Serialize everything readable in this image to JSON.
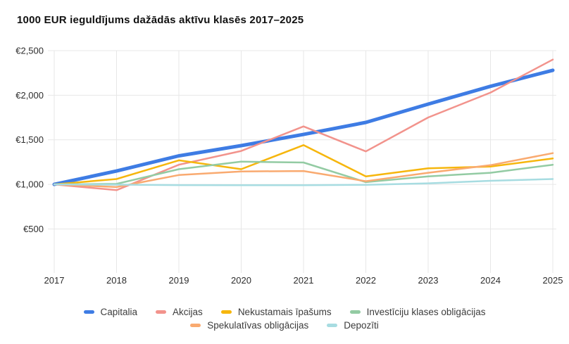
{
  "title": "1000 EUR ieguldījums dažādās aktīvu klasēs 2017–2025",
  "chart_data": {
    "type": "line",
    "title": "1000 EUR ieguldījums dažādās aktīvu klasēs 2017–2025",
    "categories": [
      "2017",
      "2018",
      "2019",
      "2020",
      "2021",
      "2022",
      "2023",
      "2024",
      "2025"
    ],
    "series": [
      {
        "name": "Capitalia",
        "color": "#3e7ce4",
        "line_width": 5,
        "legend_row": 1,
        "values": [
          1000,
          1150,
          1320,
          1435,
          1560,
          1695,
          1900,
          2100,
          2280
        ]
      },
      {
        "name": "Akcijas",
        "color": "#f2938c",
        "line_width": 2.5,
        "legend_row": 1,
        "values": [
          1000,
          935,
          1220,
          1375,
          1650,
          1370,
          1750,
          2030,
          2400
        ]
      },
      {
        "name": "Nekustamais īpašums",
        "color": "#f6b60d",
        "line_width": 2.5,
        "legend_row": 1,
        "values": [
          1000,
          1060,
          1270,
          1170,
          1440,
          1090,
          1180,
          1200,
          1290
        ]
      },
      {
        "name": "Investīciju klases obligācijas",
        "color": "#93cba3",
        "line_width": 2.5,
        "legend_row": 1,
        "values": [
          1000,
          1005,
          1170,
          1255,
          1245,
          1025,
          1090,
          1130,
          1220
        ]
      },
      {
        "name": "Spekulatīvas obligācijas",
        "color": "#f9aa70",
        "line_width": 2.5,
        "legend_row": 2,
        "values": [
          1000,
          970,
          1105,
          1145,
          1150,
          1035,
          1130,
          1215,
          1350
        ]
      },
      {
        "name": "Depozīti",
        "color": "#a7dce1",
        "line_width": 2.5,
        "legend_row": 2,
        "values": [
          1000,
          997,
          992,
          990,
          990,
          995,
          1012,
          1040,
          1060
        ]
      }
    ],
    "y_ticks": [
      {
        "label": "€500",
        "value": 500
      },
      {
        "label": "€1,000",
        "value": 1000
      },
      {
        "label": "€1,500",
        "value": 1500
      },
      {
        "label": "€2,000",
        "value": 2000
      },
      {
        "label": "€2,500",
        "value": 2500
      }
    ],
    "ylim": [
      0,
      2500
    ],
    "xlabel": "",
    "ylabel": "",
    "grid": true,
    "legend_position": "bottom",
    "grid_color": "#e7e7e7",
    "axis_label_color": "#2d2d2d"
  }
}
